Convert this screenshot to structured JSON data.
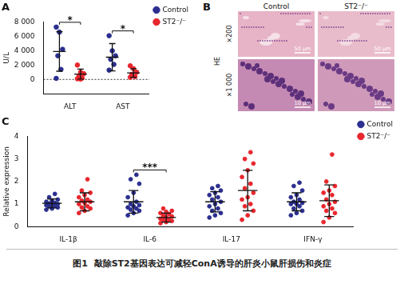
{
  "chart_data": [
    {
      "type": "scatter",
      "title": "A",
      "y_label": "U/L",
      "categories": [
        "ALT",
        "AST"
      ],
      "series": [
        {
          "name": "Control",
          "color": "#2b2f8f",
          "marker": "circle",
          "values": [
            [
              7300,
              6600,
              4200,
              3300,
              1400,
              150
            ],
            [
              6100,
              4000,
              3300,
              2800,
              2100,
              1300
            ]
          ],
          "mean": [
            3900,
            3100
          ],
          "sd": [
            2750,
            1900
          ]
        },
        {
          "name": "ST2⁻/⁻",
          "color": "#e8262d",
          "marker": "circle",
          "values": [
            [
              2000,
              1000,
              800,
              500,
              200,
              100,
              50
            ],
            [
              1900,
              1500,
              1000,
              700,
              400,
              300
            ]
          ],
          "mean": [
            750,
            900
          ],
          "sd": [
            700,
            600
          ]
        }
      ],
      "ylim": [
        -2000,
        8000
      ],
      "yticks": [
        0,
        {
          "value": 2000,
          "label": "2 000"
        },
        {
          "value": 4000,
          "label": "4 000"
        },
        {
          "value": 6000,
          "label": "6 000"
        },
        {
          "value": 8000,
          "label": "8 000"
        }
      ],
      "grid": false,
      "legend": "top-right",
      "annotations": [
        {
          "text": "*",
          "category": "ALT"
        },
        {
          "text": "*",
          "category": "AST"
        },
        {
          "y": 0,
          "line_style": "dotted"
        }
      ]
    },
    {
      "type": "scatter",
      "title": "C",
      "y_label": "Relative expression",
      "categories": [
        "IL-1β",
        "IL-6",
        "IL-17",
        "IFN-γ"
      ],
      "series": [
        {
          "name": "Control",
          "color": "#2b2f8f",
          "marker": "circle",
          "values": [
            [
              0.75,
              0.8,
              0.85,
              0.9,
              0.92,
              0.95,
              0.98,
              1.0,
              1.02,
              1.05,
              1.1,
              1.15,
              1.2,
              1.3,
              1.45
            ],
            [
              0.5,
              0.6,
              0.7,
              0.75,
              0.8,
              0.85,
              0.9,
              0.95,
              1.0,
              1.1,
              1.3,
              1.5,
              1.9,
              2.1,
              2.3
            ],
            [
              0.4,
              0.5,
              0.6,
              0.7,
              0.8,
              0.9,
              1.0,
              1.1,
              1.2,
              1.3,
              1.4,
              1.5,
              1.6,
              1.7,
              1.8
            ],
            [
              0.5,
              0.6,
              0.7,
              0.8,
              0.9,
              1.0,
              1.0,
              1.05,
              1.1,
              1.2,
              1.3,
              1.4,
              1.6,
              1.8,
              1.95
            ]
          ],
          "mean": [
            1.03,
            1.1,
            1.1,
            1.1
          ],
          "sd": [
            0.2,
            0.5,
            0.45,
            0.4
          ]
        },
        {
          "name": "ST2⁻/⁻",
          "color": "#e8262d",
          "marker": "circle",
          "values": [
            [
              0.6,
              0.7,
              0.8,
              0.85,
              0.9,
              1.0,
              1.05,
              1.1,
              1.15,
              1.2,
              1.3,
              1.4,
              1.5,
              1.6,
              2.1
            ],
            [
              0.15,
              0.2,
              0.25,
              0.3,
              0.3,
              0.35,
              0.4,
              0.45,
              0.5,
              0.55,
              0.6,
              0.65,
              0.7,
              0.8
            ],
            [
              0.3,
              0.5,
              0.7,
              0.9,
              1.0,
              1.2,
              1.3,
              1.5,
              1.7,
              1.9,
              2.2,
              2.5,
              2.8,
              3.0,
              3.3
            ],
            [
              0.2,
              0.4,
              0.6,
              0.7,
              0.8,
              0.9,
              1.0,
              1.1,
              1.2,
              1.4,
              1.5,
              1.6,
              1.8,
              2.0,
              3.2
            ]
          ],
          "mean": [
            1.1,
            0.4,
            1.6,
            1.15
          ],
          "sd": [
            0.4,
            0.2,
            0.9,
            0.7
          ]
        }
      ],
      "ylim": [
        0,
        4
      ],
      "yticks": [
        0,
        1,
        2,
        3,
        4
      ],
      "grid": false,
      "legend": "top-right",
      "annotations": [
        {
          "text": "***",
          "category": "IL-6"
        }
      ]
    }
  ],
  "panel_b": {
    "title": "B",
    "columns": [
      "Control",
      "ST2⁻/⁻"
    ],
    "stain": "HE",
    "rows": [
      {
        "label": "×200",
        "scale_bar": "50 μm"
      },
      {
        "label": "×1 000",
        "scale_bar": "10 μm"
      }
    ]
  },
  "caption": "图1  敲除ST2基因表达可减轻ConA诱导的肝炎小鼠肝损伤和炎症"
}
